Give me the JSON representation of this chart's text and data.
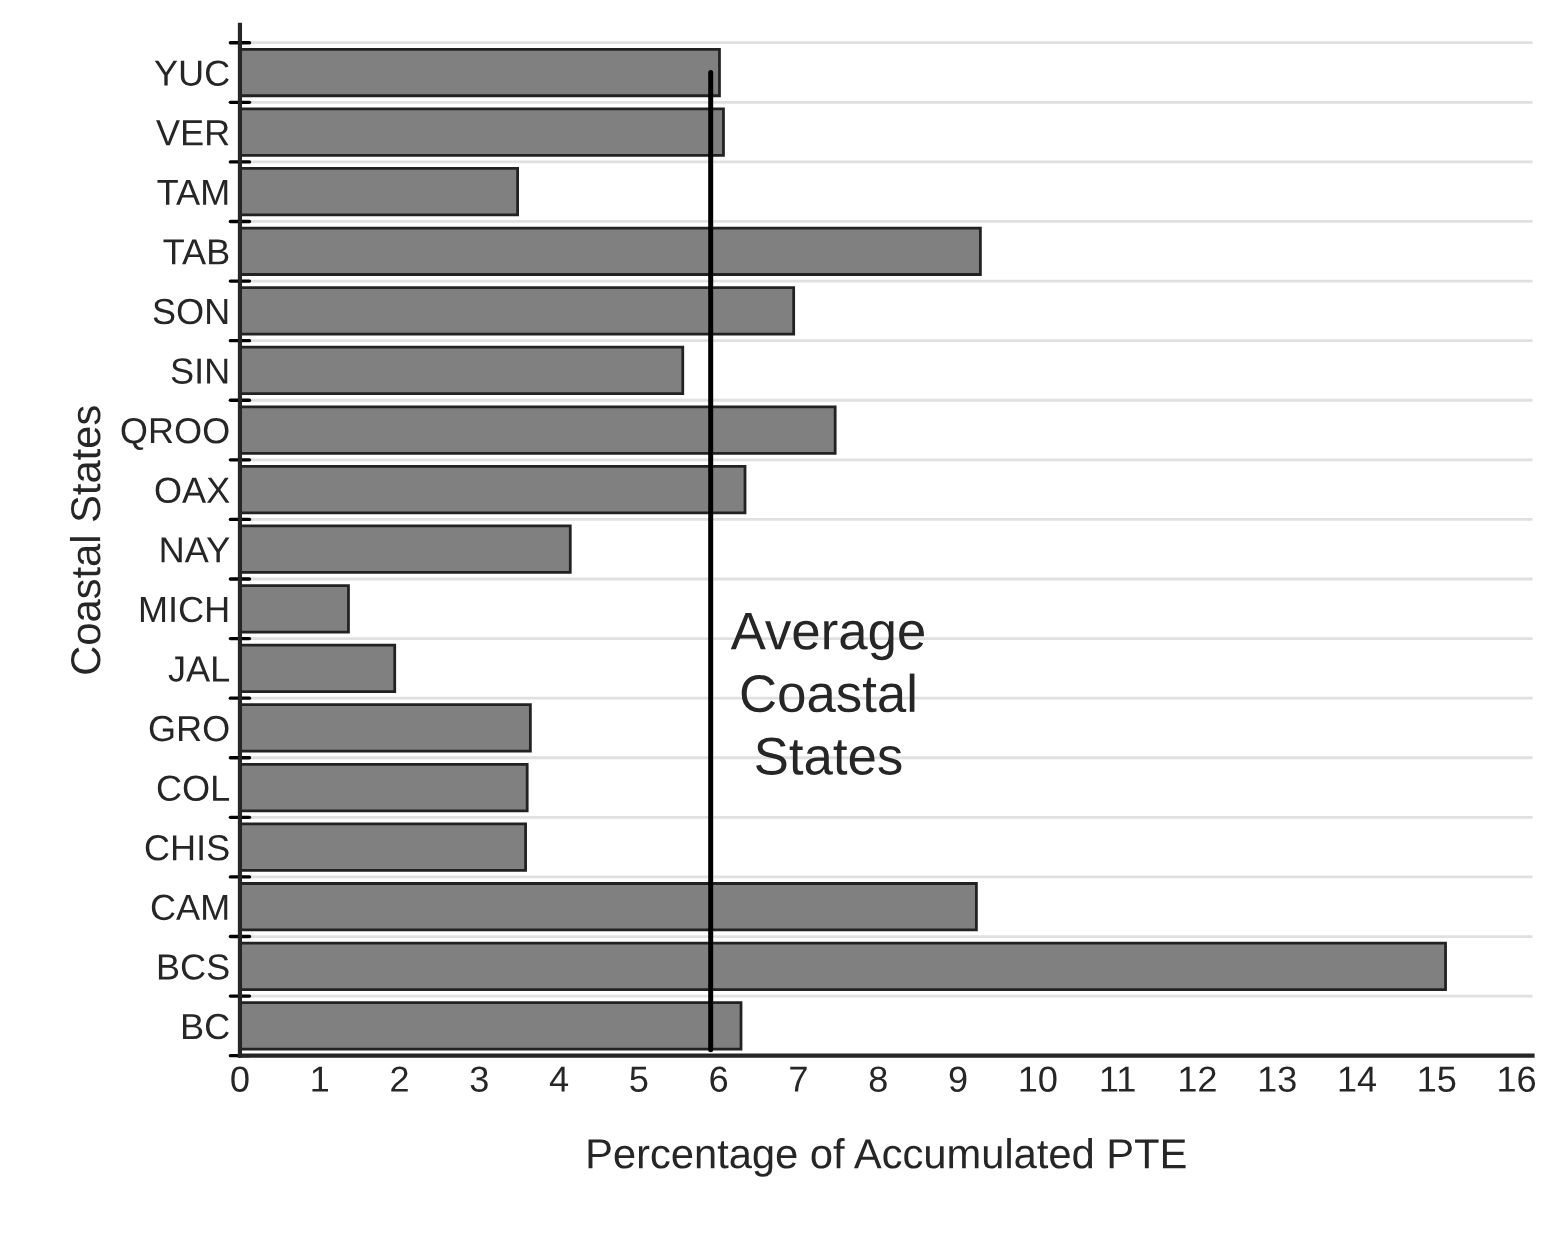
{
  "chart_data": {
    "type": "bar",
    "orientation": "horizontal",
    "xlabel": "Percentage of Accumulated PTE",
    "ylabel": "Coastal States",
    "categories": [
      "YUC",
      "VER",
      "TAM",
      "TAB",
      "SON",
      "SIN",
      "QROO",
      "OAX",
      "NAY",
      "MICH",
      "JAL",
      "GRO",
      "COL",
      "CHIS",
      "CAM",
      "BCS",
      "BC"
    ],
    "values": [
      6.01,
      6.06,
      3.48,
      9.28,
      6.94,
      5.55,
      7.46,
      6.33,
      4.14,
      1.36,
      1.94,
      3.64,
      3.6,
      3.58,
      9.23,
      15.11,
      6.28
    ],
    "color": "#808080",
    "xlim": [
      0,
      16.2
    ],
    "xticks": [
      0,
      1,
      2,
      3,
      4,
      5,
      6,
      7,
      8,
      9,
      10,
      11,
      12,
      13,
      14,
      15,
      16
    ],
    "grid": "y",
    "ref_lines": [
      {
        "axis": "x",
        "value": 5.9,
        "label": "Average\nCoastal\nStates",
        "color": "#000000"
      }
    ]
  }
}
